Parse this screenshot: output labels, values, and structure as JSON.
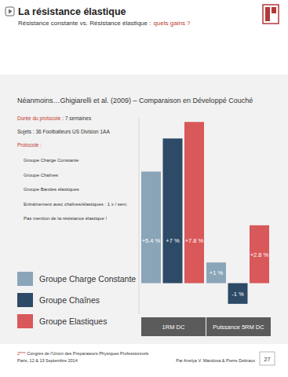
{
  "header": {
    "title": "La résistance élastique",
    "subtitle": "Résistance constante vs. Résistance élastique :",
    "subtitle_highlight": "quels gains ?"
  },
  "study": {
    "duration_label": "Durée du protocole",
    "duration": ": 7 semaines",
    "subjects": "Sujets : 36 Footballeurs US Division 1AA",
    "protocol_label": "Protocole :",
    "protocol_items": [
      "Groupe Charge Constante",
      "Groupe Chaînes",
      "Groupe Bandes élastiques",
      "Entraînement avec chaînes/élastiques : 1 x / sem.",
      "Pas mention de la résistance élastique !"
    ]
  },
  "chart_data": {
    "type": "bar",
    "title": "Néanmoins…Ghigiarelli et al. (2009) – Comparaison en Développé Couché",
    "categories": [
      "1RM DC",
      "Puissance 5RM DC"
    ],
    "series": [
      {
        "name": "Groupe Charge Constante",
        "color": "#8aa5b8",
        "values": [
          5.4,
          1
        ],
        "value_labels": [
          "+5.4 %",
          "+1 %"
        ]
      },
      {
        "name": "Groupe Chaînes",
        "color": "#2d4a66",
        "values": [
          7,
          -1
        ],
        "value_labels": [
          "+7 %",
          "-1 %"
        ]
      },
      {
        "name": "Groupe Elastiques",
        "color": "#d9585a",
        "values": [
          7.8,
          2.8
        ],
        "value_labels": [
          "+7.8 %",
          "+2.8 %"
        ]
      }
    ],
    "ylim": [
      -1.5,
      8
    ],
    "data_labels": true,
    "tick_labels": false,
    "grid": false,
    "legend": "left"
  },
  "footer": {
    "congress_number": "2",
    "congress_suffix": "ème",
    "congress": "Congrès de l'Union des Préparateurs Physiques Professionnels",
    "place_date": "Paris, 12 & 13 Septembre 2014",
    "authors": "Par Anelya V. Mandova & Pierre Debraux",
    "page": 27
  }
}
